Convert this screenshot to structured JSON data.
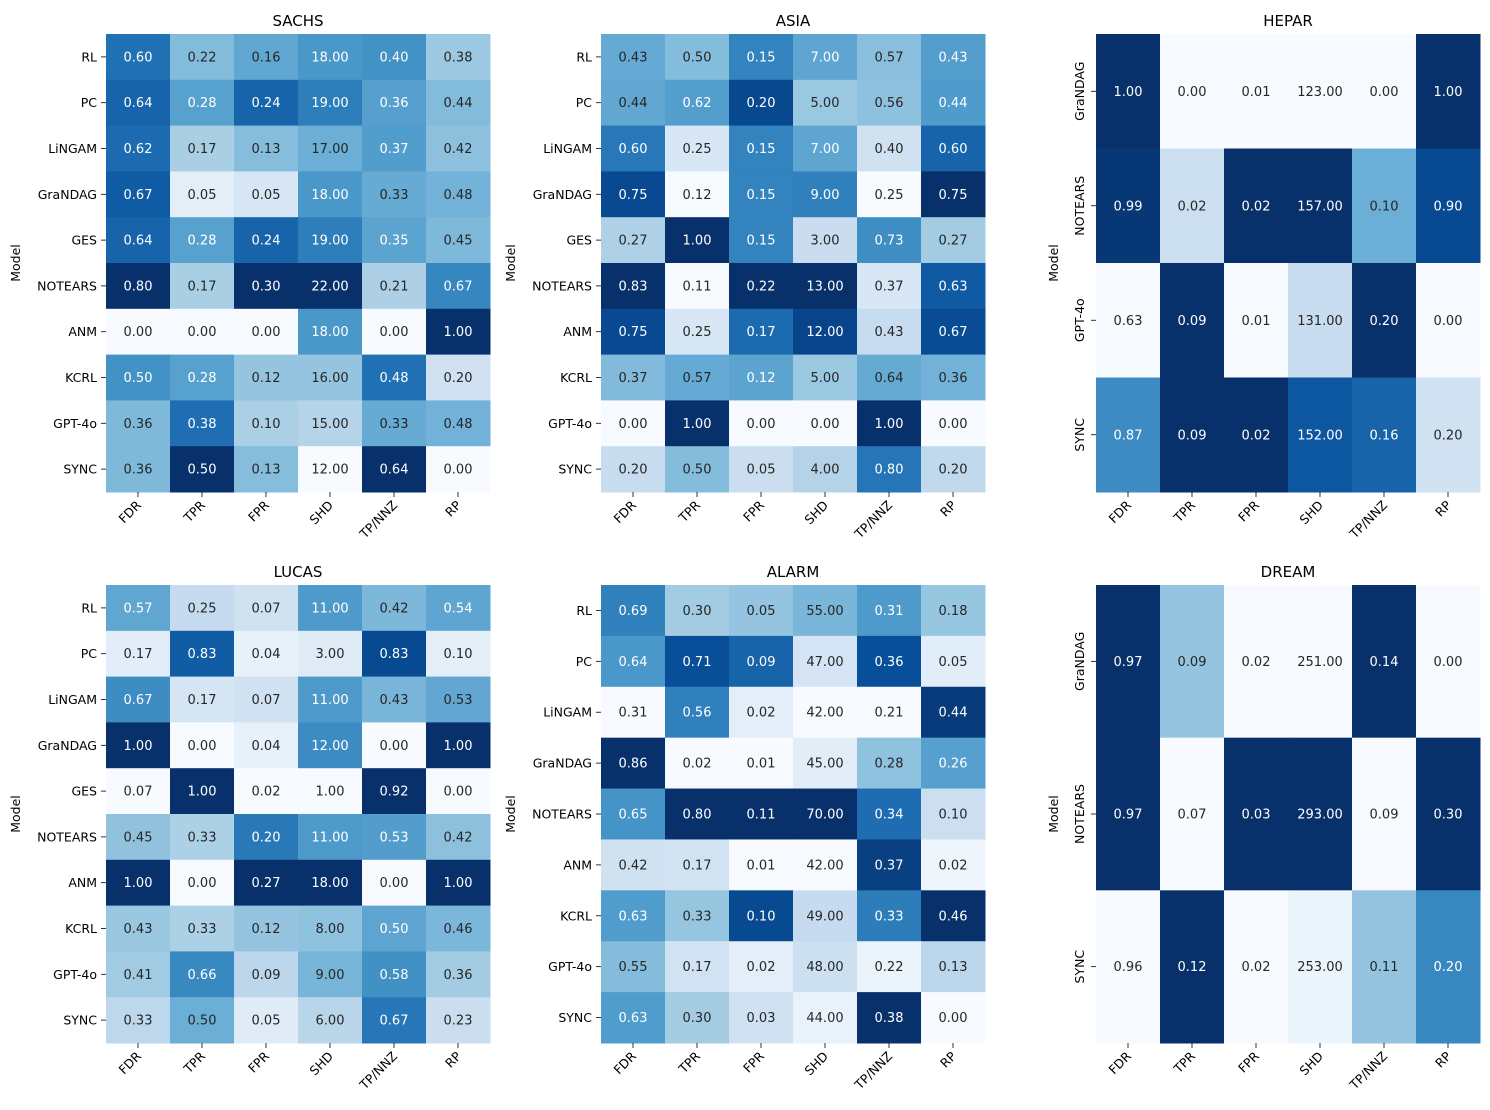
{
  "chart_data": [
    {
      "type": "heatmap",
      "title": "SACHS",
      "ylabel": "Model",
      "columns": [
        "FDR",
        "TPR",
        "FPR",
        "SHD",
        "TP/NNZ",
        "RP"
      ],
      "rows": [
        "RL",
        "PC",
        "LiNGAM",
        "GraNDAG",
        "GES",
        "NOTEARS",
        "ANM",
        "KCRL",
        "GPT-4o",
        "SYNC"
      ],
      "values": [
        [
          0.6,
          0.22,
          0.16,
          18.0,
          0.4,
          0.38
        ],
        [
          0.64,
          0.28,
          0.24,
          19.0,
          0.36,
          0.44
        ],
        [
          0.62,
          0.17,
          0.13,
          17.0,
          0.37,
          0.42
        ],
        [
          0.67,
          0.05,
          0.05,
          18.0,
          0.33,
          0.48
        ],
        [
          0.64,
          0.28,
          0.24,
          19.0,
          0.35,
          0.45
        ],
        [
          0.8,
          0.17,
          0.3,
          22.0,
          0.21,
          0.67
        ],
        [
          0.0,
          0.0,
          0.0,
          18.0,
          0.0,
          1.0
        ],
        [
          0.5,
          0.28,
          0.12,
          16.0,
          0.48,
          0.2
        ],
        [
          0.36,
          0.38,
          0.1,
          15.0,
          0.33,
          0.48
        ],
        [
          0.36,
          0.5,
          0.13,
          12.0,
          0.64,
          0.0
        ]
      ],
      "colormap": "Blues (per-column normalized)"
    },
    {
      "type": "heatmap",
      "title": "ASIA",
      "ylabel": "Model",
      "columns": [
        "FDR",
        "TPR",
        "FPR",
        "SHD",
        "TP/NNZ",
        "RP"
      ],
      "rows": [
        "RL",
        "PC",
        "LiNGAM",
        "GraNDAG",
        "GES",
        "NOTEARS",
        "ANM",
        "KCRL",
        "GPT-4o",
        "SYNC"
      ],
      "values": [
        [
          0.43,
          0.5,
          0.15,
          7.0,
          0.57,
          0.43
        ],
        [
          0.44,
          0.62,
          0.2,
          5.0,
          0.56,
          0.44
        ],
        [
          0.6,
          0.25,
          0.15,
          7.0,
          0.4,
          0.6
        ],
        [
          0.75,
          0.12,
          0.15,
          9.0,
          0.25,
          0.75
        ],
        [
          0.27,
          1.0,
          0.15,
          3.0,
          0.73,
          0.27
        ],
        [
          0.83,
          0.11,
          0.22,
          13.0,
          0.37,
          0.63
        ],
        [
          0.75,
          0.25,
          0.17,
          12.0,
          0.43,
          0.67
        ],
        [
          0.37,
          0.57,
          0.12,
          5.0,
          0.64,
          0.36
        ],
        [
          0.0,
          1.0,
          0.0,
          0.0,
          1.0,
          0.0
        ],
        [
          0.2,
          0.5,
          0.05,
          4.0,
          0.8,
          0.2
        ]
      ],
      "colormap": "Blues (per-column normalized)"
    },
    {
      "type": "heatmap",
      "title": "HEPAR",
      "ylabel": "Model",
      "columns": [
        "FDR",
        "TPR",
        "FPR",
        "SHD",
        "TP/NNZ",
        "RP"
      ],
      "rows": [
        "GraNDAG",
        "NOTEARS",
        "GPT-4o",
        "SYNC"
      ],
      "values": [
        [
          1.0,
          0.0,
          0.01,
          123.0,
          0.0,
          1.0
        ],
        [
          0.99,
          0.02,
          0.02,
          157.0,
          0.1,
          0.9
        ],
        [
          0.63,
          0.09,
          0.01,
          131.0,
          0.2,
          0.0
        ],
        [
          0.87,
          0.09,
          0.02,
          152.0,
          0.16,
          0.2
        ]
      ],
      "colormap": "Blues (per-column normalized)"
    },
    {
      "type": "heatmap",
      "title": "LUCAS",
      "ylabel": "Model",
      "columns": [
        "FDR",
        "TPR",
        "FPR",
        "SHD",
        "TP/NNZ",
        "RP"
      ],
      "rows": [
        "RL",
        "PC",
        "LiNGAM",
        "GraNDAG",
        "GES",
        "NOTEARS",
        "ANM",
        "KCRL",
        "GPT-4o",
        "SYNC"
      ],
      "values": [
        [
          0.57,
          0.25,
          0.07,
          11.0,
          0.42,
          0.54
        ],
        [
          0.17,
          0.83,
          0.04,
          3.0,
          0.83,
          0.1
        ],
        [
          0.67,
          0.17,
          0.07,
          11.0,
          0.43,
          0.53
        ],
        [
          1.0,
          0.0,
          0.04,
          12.0,
          0.0,
          1.0
        ],
        [
          0.07,
          1.0,
          0.02,
          1.0,
          0.92,
          0.0
        ],
        [
          0.45,
          0.33,
          0.2,
          11.0,
          0.53,
          0.42
        ],
        [
          1.0,
          0.0,
          0.27,
          18.0,
          0.0,
          1.0
        ],
        [
          0.43,
          0.33,
          0.12,
          8.0,
          0.5,
          0.46
        ],
        [
          0.41,
          0.66,
          0.09,
          9.0,
          0.58,
          0.36
        ],
        [
          0.33,
          0.5,
          0.05,
          6.0,
          0.67,
          0.23
        ]
      ],
      "colormap": "Blues (per-column normalized)"
    },
    {
      "type": "heatmap",
      "title": "ALARM",
      "ylabel": "Model",
      "columns": [
        "FDR",
        "TPR",
        "FPR",
        "SHD",
        "TP/NNZ",
        "RP"
      ],
      "rows": [
        "RL",
        "PC",
        "LiNGAM",
        "GraNDAG",
        "NOTEARS",
        "ANM",
        "KCRL",
        "GPT-4o",
        "SYNC"
      ],
      "values": [
        [
          0.69,
          0.3,
          0.05,
          55.0,
          0.31,
          0.18
        ],
        [
          0.64,
          0.71,
          0.09,
          47.0,
          0.36,
          0.05
        ],
        [
          0.31,
          0.56,
          0.02,
          42.0,
          0.21,
          0.44
        ],
        [
          0.86,
          0.02,
          0.01,
          45.0,
          0.28,
          0.26
        ],
        [
          0.65,
          0.8,
          0.11,
          70.0,
          0.34,
          0.1
        ],
        [
          0.42,
          0.17,
          0.01,
          42.0,
          0.37,
          0.02
        ],
        [
          0.63,
          0.33,
          0.1,
          49.0,
          0.33,
          0.46
        ],
        [
          0.55,
          0.17,
          0.02,
          48.0,
          0.22,
          0.13
        ],
        [
          0.63,
          0.3,
          0.03,
          44.0,
          0.38,
          0.0
        ]
      ],
      "colormap": "Blues (per-column normalized)"
    },
    {
      "type": "heatmap",
      "title": "DREAM",
      "ylabel": "Model",
      "columns": [
        "FDR",
        "TPR",
        "FPR",
        "SHD",
        "TP/NNZ",
        "RP"
      ],
      "rows": [
        "GraNDAG",
        "NOTEARS",
        "SYNC"
      ],
      "values": [
        [
          0.97,
          0.09,
          0.02,
          251.0,
          0.14,
          0.0
        ],
        [
          0.97,
          0.07,
          0.03,
          293.0,
          0.09,
          0.3
        ],
        [
          0.96,
          0.12,
          0.02,
          253.0,
          0.11,
          0.2
        ]
      ],
      "colormap": "Blues (per-column normalized)"
    }
  ]
}
